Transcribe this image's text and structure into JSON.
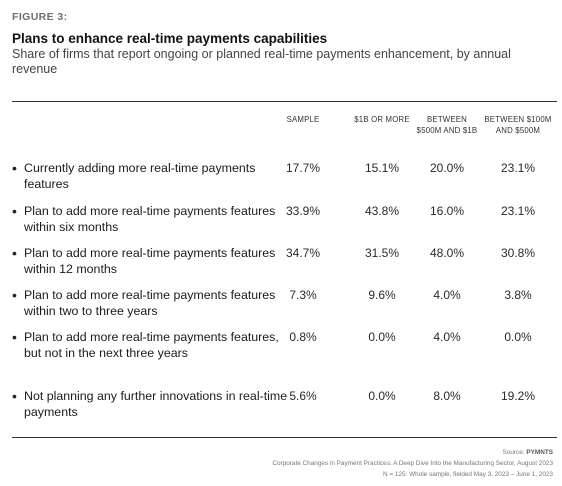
{
  "header": {
    "figure_label": "FIGURE 3:",
    "title": "Plans to enhance real-time payments capabilities",
    "subtitle": "Share of firms that report ongoing or planned real-time payments enhancement, by annual revenue"
  },
  "columns": [
    {
      "line1": "SAMPLE",
      "line2": ""
    },
    {
      "line1": "$1B OR MORE",
      "line2": ""
    },
    {
      "line1": "BETWEEN",
      "line2": "$500M AND $1B"
    },
    {
      "line1": "BETWEEN $100M",
      "line2": "AND $500M"
    }
  ],
  "rows": [
    {
      "bullet": "•",
      "label": "Currently adding more real-time payments features",
      "values": [
        "17.7%",
        "15.1%",
        "20.0%",
        "23.1%"
      ]
    },
    {
      "bullet": "•",
      "label": "Plan to add more real-time payments features within six months",
      "values": [
        "33.9%",
        "43.8%",
        "16.0%",
        "23.1%"
      ]
    },
    {
      "bullet": "•",
      "label": "Plan to add more real-time payments features within 12 months",
      "values": [
        "34.7%",
        "31.5%",
        "48.0%",
        "30.8%"
      ]
    },
    {
      "bullet": "•",
      "label": "Plan to add more real-time payments features within two to three years",
      "values": [
        "7.3%",
        "9.6%",
        "4.0%",
        "3.8%"
      ]
    },
    {
      "bullet": "•",
      "label": "Plan to add more real-time payments features, but not in the next three years",
      "values": [
        "0.8%",
        "0.0%",
        "4.0%",
        "0.0%"
      ]
    },
    {
      "bullet": "•",
      "label": "Not planning any further innovations in real-time payments",
      "values": [
        "5.6%",
        "0.0%",
        "8.0%",
        "19.2%"
      ]
    }
  ],
  "footer": {
    "source_prefix": "Source: ",
    "source_name": "PYMNTS",
    "report": "Corporate Changes in Payment Practices: A Deep Dive Into the Manufacturing Sector, August 2023",
    "sample_note": "N = 125: Whole sample, fielded May 3, 2023 – June 1, 2023"
  },
  "chart_data": {
    "type": "table",
    "title": "Plans to enhance real-time payments capabilities",
    "subtitle": "Share of firms that report ongoing or planned real-time payments enhancement, by annual revenue",
    "columns": [
      "SAMPLE",
      "$1B OR MORE",
      "BETWEEN $500M AND $1B",
      "BETWEEN $100M AND $500M"
    ],
    "rows": [
      "Currently adding more real-time payments features",
      "Plan to add more real-time payments features within six months",
      "Plan to add more real-time payments features within 12 months",
      "Plan to add more real-time payments features within two to three years",
      "Plan to add more real-time payments features, but not in the next three years",
      "Not planning any further innovations in real-time payments"
    ],
    "values": [
      [
        17.7,
        15.1,
        20.0,
        23.1
      ],
      [
        33.9,
        43.8,
        16.0,
        23.1
      ],
      [
        34.7,
        31.5,
        48.0,
        30.8
      ],
      [
        7.3,
        9.6,
        4.0,
        3.8
      ],
      [
        0.8,
        0.0,
        4.0,
        0.0
      ],
      [
        5.6,
        0.0,
        8.0,
        19.2
      ]
    ],
    "unit": "%"
  }
}
